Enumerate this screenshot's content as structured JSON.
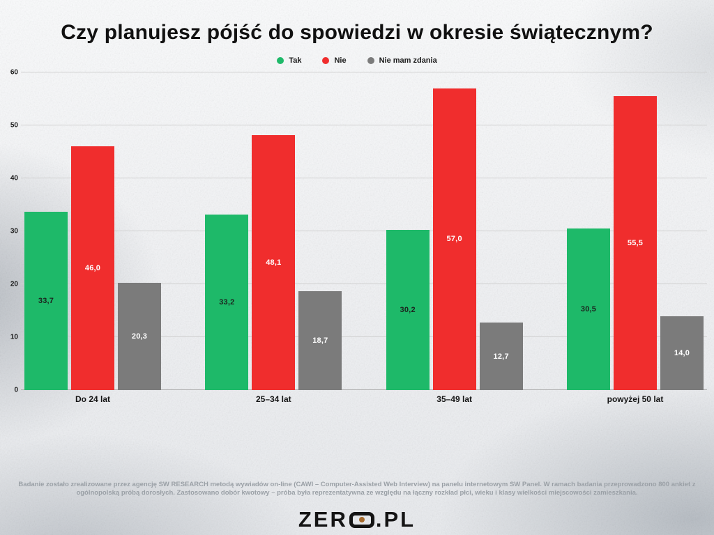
{
  "title": "Czy planujesz pójść do spowiedzi w okresie świątecznym?",
  "chart_data": {
    "type": "bar",
    "categories": [
      "Do 24 lat",
      "25–34 lat",
      "35–49 lat",
      "powyżej 50 lat"
    ],
    "series": [
      {
        "name": "Tak",
        "color": "#1eb969",
        "values": [
          33.7,
          33.2,
          30.2,
          30.5
        ],
        "display": [
          "33,7",
          "33,2",
          "30,2",
          "30,5"
        ],
        "label_color": "#1c231e"
      },
      {
        "name": "Nie",
        "color": "#f02d2d",
        "values": [
          46.0,
          48.1,
          57.0,
          55.5
        ],
        "display": [
          "46,0",
          "48,1",
          "57,0",
          "55,5"
        ],
        "label_color": "#ffffff"
      },
      {
        "name": "Nie mam zdania",
        "color": "#7b7b7b",
        "values": [
          20.3,
          18.7,
          12.7,
          14.0
        ],
        "display": [
          "20,3",
          "18,7",
          "12,7",
          "14,0"
        ],
        "label_color": "#ffffff"
      }
    ],
    "ylim": [
      0,
      60
    ],
    "yticks": [
      0,
      10,
      20,
      30,
      40,
      50,
      60
    ],
    "grid": true,
    "legend_position": "top"
  },
  "source_note": "Badanie zostało zrealizowane przez agencję SW RESEARCH metodą wywiadów on-line (CAWI – Computer-Assisted Web Interview) na panelu internetowym SW Panel. W ramach badania przeprowadzono 800 ankiet z ogólnopolską próbą dorosłych. Zastosowano dobór kwotowy – próba była reprezentatywna ze względu na łączny rozkład płci, wieku i klasy wielkości miejscowości zamieszkania.",
  "logo": {
    "text_left": "ZER",
    "text_right": ".PL",
    "o_dot_color": "#a56a2c"
  }
}
